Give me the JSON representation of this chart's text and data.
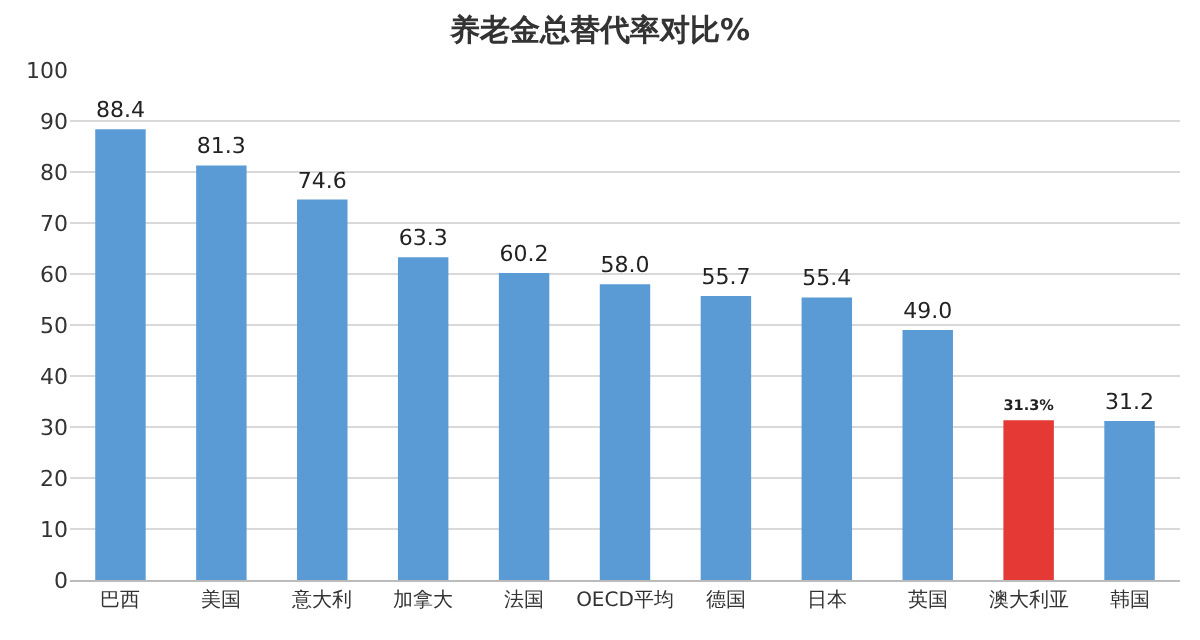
{
  "chart_data": {
    "type": "bar",
    "title": "养老金总替代率对比%",
    "categories": [
      "巴西",
      "美国",
      "意大利",
      "加拿大",
      "法国",
      "OECD平均",
      "德国",
      "日本",
      "英国",
      "澳大利亚",
      "韩国"
    ],
    "values": [
      88.4,
      81.3,
      74.6,
      63.3,
      60.2,
      58.0,
      55.7,
      55.4,
      49.0,
      31.3,
      31.2
    ],
    "colors": [
      "#5b9bd5",
      "#5b9bd5",
      "#5b9bd5",
      "#5b9bd5",
      "#5b9bd5",
      "#5b9bd5",
      "#5b9bd5",
      "#5b9bd5",
      "#5b9bd5",
      "#e53935",
      "#5b9bd5"
    ],
    "value_labels": [
      "88.4",
      "81.3",
      "74.6",
      "63.3",
      "60.2",
      "58.0",
      "55.7",
      "55.4",
      "49.0",
      "31.3%",
      "31.2"
    ],
    "ylim": [
      0,
      100
    ],
    "yticks": [
      0,
      10,
      20,
      30,
      40,
      50,
      60,
      70,
      80,
      90,
      100
    ],
    "grid": "y",
    "legend": false
  }
}
